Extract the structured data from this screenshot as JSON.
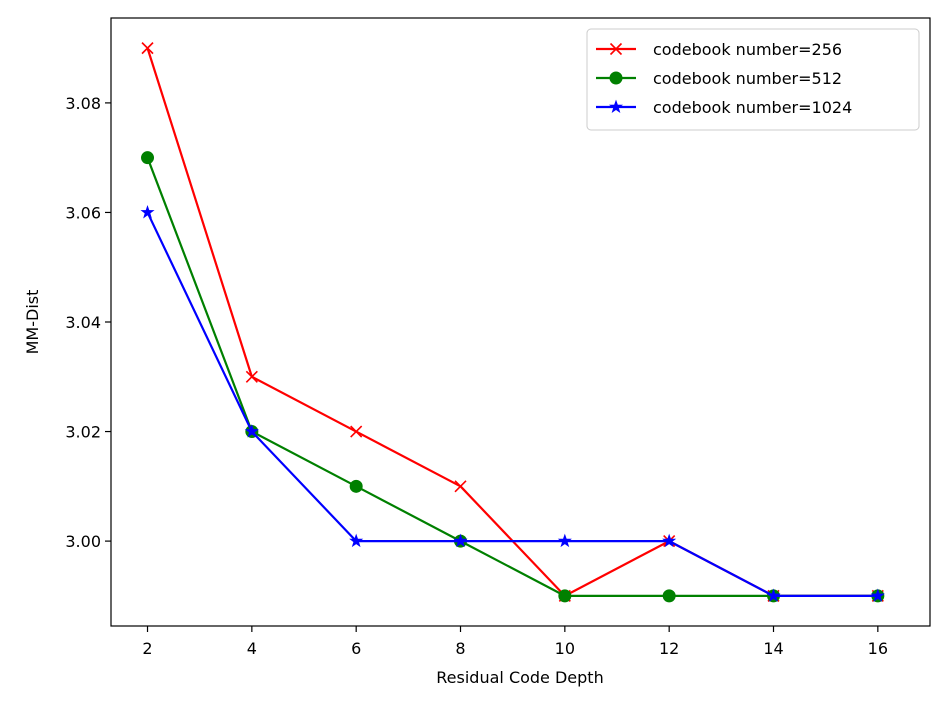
{
  "chart_data": {
    "type": "line",
    "title": "",
    "xlabel": "Residual Code Depth",
    "ylabel": "MM-Dist",
    "x": [
      2,
      4,
      6,
      8,
      10,
      12,
      14,
      16
    ],
    "xlim": [
      1.3,
      17.0
    ],
    "ylim": [
      2.9845,
      3.0955
    ],
    "xticks": [
      2,
      4,
      6,
      8,
      10,
      12,
      14,
      16
    ],
    "yticks": [
      3.0,
      3.02,
      3.04,
      3.06,
      3.08
    ],
    "ytick_labels": [
      "3.00",
      "3.02",
      "3.04",
      "3.06",
      "3.08"
    ],
    "xtick_labels": [
      "2",
      "4",
      "6",
      "8",
      "10",
      "12",
      "14",
      "16"
    ],
    "grid": false,
    "legend_position": "top-right",
    "series": [
      {
        "name": "codebook number=256",
        "color": "#ff0000",
        "marker": "x",
        "values": [
          3.09,
          3.03,
          3.02,
          3.01,
          2.99,
          3.0,
          2.99,
          2.99
        ]
      },
      {
        "name": "codebook number=512",
        "color": "#008000",
        "marker": "o",
        "values": [
          3.07,
          3.02,
          3.01,
          3.0,
          2.99,
          2.99,
          2.99,
          2.99
        ]
      },
      {
        "name": "codebook number=1024",
        "color": "#0000ff",
        "marker": "*",
        "values": [
          3.06,
          3.02,
          3.0,
          3.0,
          3.0,
          3.0,
          2.99,
          2.99
        ]
      }
    ]
  }
}
